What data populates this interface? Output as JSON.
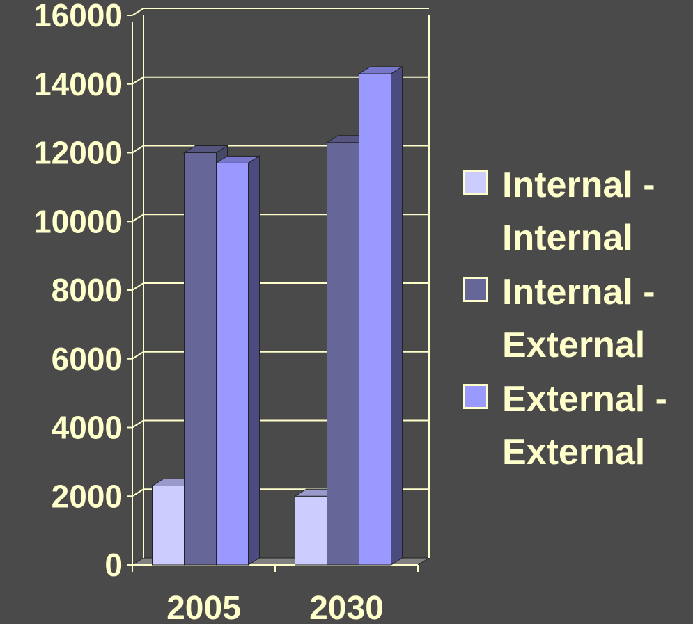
{
  "chart_data": {
    "type": "bar",
    "categories": [
      "2005",
      "2030"
    ],
    "series": [
      {
        "name": "Internal - Internal",
        "values": [
          2300,
          2000
        ],
        "color": "#ccccff",
        "side_color": "#8f8fb3",
        "top_color": "#9999cc"
      },
      {
        "name": "Internal - External",
        "values": [
          12000,
          12300
        ],
        "color": "#666699",
        "side_color": "#474766",
        "top_color": "#555580"
      },
      {
        "name": "External - External",
        "values": [
          11700,
          14300
        ],
        "color": "#9999ff",
        "side_color": "#4b4b80",
        "top_color": "#7777cc"
      }
    ],
    "yticks": [
      "0",
      "2000",
      "4000",
      "6000",
      "8000",
      "10000",
      "12000",
      "14000",
      "16000"
    ],
    "ylim": [
      0,
      16000
    ],
    "grid": true,
    "legend_position": "right",
    "colors": {
      "background": "#4a4a4a",
      "text": "#ffffcc",
      "grid": "#ffffcc",
      "floor": "#808080"
    }
  }
}
